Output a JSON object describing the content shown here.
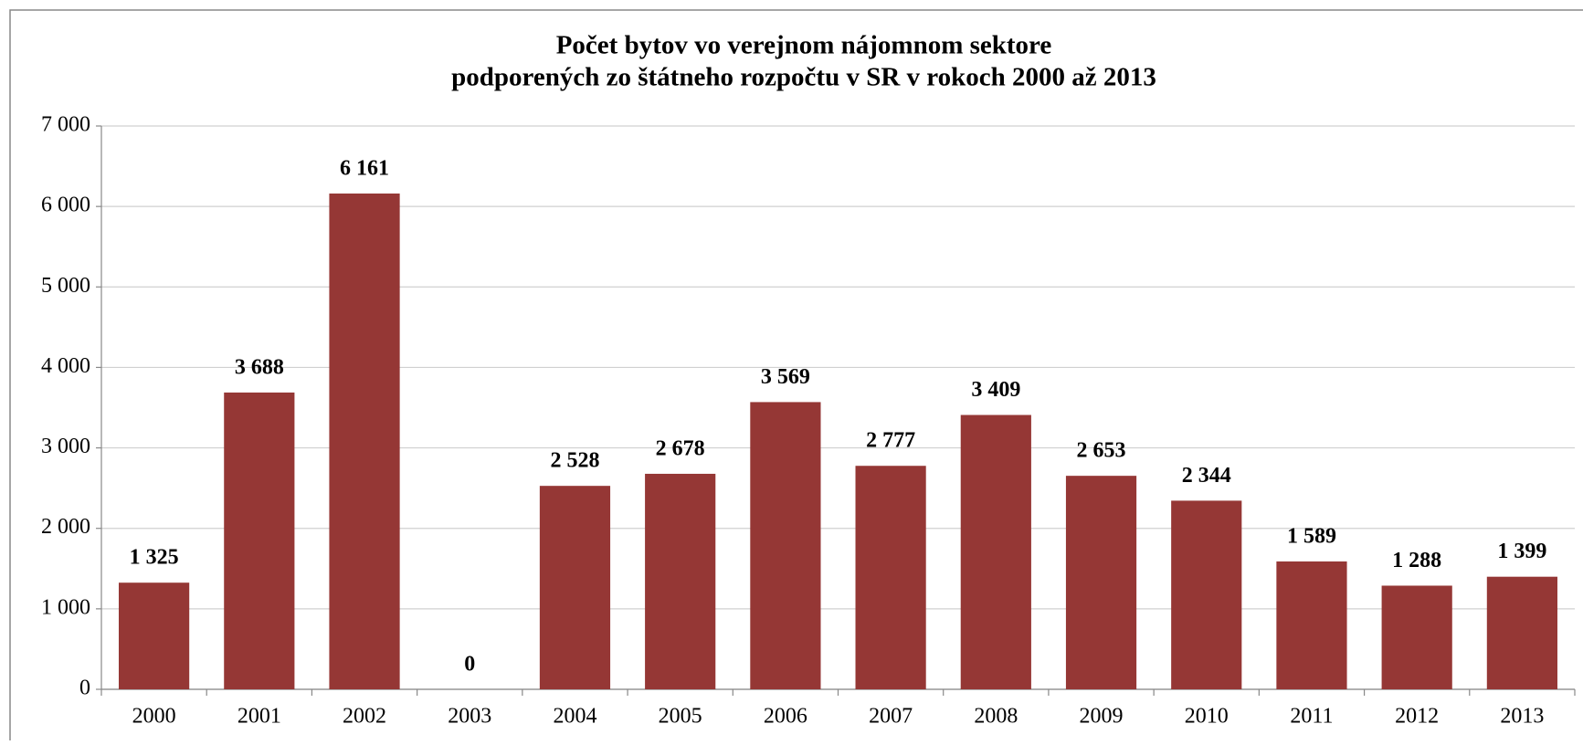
{
  "chart_data": {
    "type": "bar",
    "title": "Počet bytov vo verejnom nájomnom sektore",
    "subtitle": "podporených zo štátneho rozpočtu v SR v rokoch 2000 až 2013",
    "categories": [
      "2000",
      "2001",
      "2002",
      "2003",
      "2004",
      "2005",
      "2006",
      "2007",
      "2008",
      "2009",
      "2010",
      "2011",
      "2012",
      "2013"
    ],
    "values": [
      1325,
      3688,
      6161,
      0,
      2528,
      2678,
      3569,
      2777,
      3409,
      2653,
      2344,
      1589,
      1288,
      1399
    ],
    "value_labels": [
      "1 325",
      "3 688",
      "6 161",
      "0",
      "2 528",
      "2 678",
      "3 569",
      "2 777",
      "3 409",
      "2 653",
      "2 344",
      "1 589",
      "1 288",
      "1 399"
    ],
    "color": "#953735",
    "ylim": [
      0,
      7000
    ],
    "yticks": [
      0,
      {
        "value": 1000,
        "label": "1 000"
      },
      {
        "value": 2000,
        "label": "2 000"
      },
      {
        "value": 3000,
        "label": "3 000"
      },
      {
        "value": 4000,
        "label": "4 000"
      },
      {
        "value": 5000,
        "label": "5 000"
      },
      {
        "value": 6000,
        "label": "6 000"
      },
      {
        "value": 7000,
        "label": "7 000"
      }
    ],
    "grid": true
  }
}
